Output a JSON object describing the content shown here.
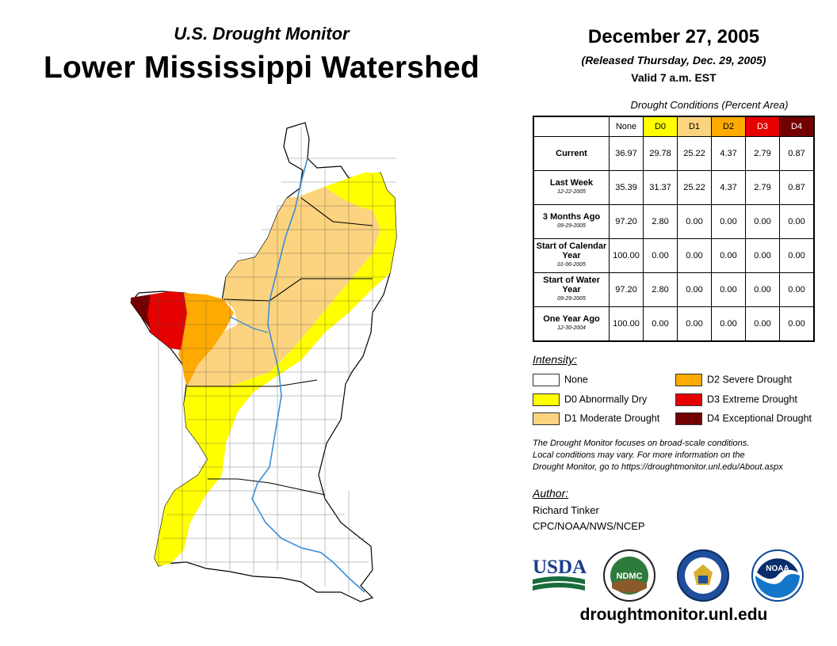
{
  "header": {
    "subtitle": "U.S. Drought Monitor",
    "title": "Lower Mississippi Watershed",
    "date": "December 27, 2005",
    "released": "(Released Thursday, Dec. 29, 2005)",
    "valid": "Valid 7 a.m. EST"
  },
  "table": {
    "caption": "Drought Conditions (Percent Area)",
    "columns": [
      "None",
      "D0",
      "D1",
      "D2",
      "D3",
      "D4"
    ],
    "rows": [
      {
        "label": "Current",
        "date": "",
        "values": [
          "36.97",
          "29.78",
          "25.22",
          "4.37",
          "2.79",
          "0.87"
        ]
      },
      {
        "label": "Last Week",
        "date": "12-22-2005",
        "values": [
          "35.39",
          "31.37",
          "25.22",
          "4.37",
          "2.79",
          "0.87"
        ]
      },
      {
        "label": "3 Months Ago",
        "date": "09-29-2005",
        "values": [
          "97.20",
          "2.80",
          "0.00",
          "0.00",
          "0.00",
          "0.00"
        ]
      },
      {
        "label": "Start of Calendar Year",
        "date": "01-06-2005",
        "values": [
          "100.00",
          "0.00",
          "0.00",
          "0.00",
          "0.00",
          "0.00"
        ]
      },
      {
        "label": "Start of Water Year",
        "date": "09-29-2005",
        "values": [
          "97.20",
          "2.80",
          "0.00",
          "0.00",
          "0.00",
          "0.00"
        ]
      },
      {
        "label": "One Year Ago",
        "date": "12-30-2004",
        "values": [
          "100.00",
          "0.00",
          "0.00",
          "0.00",
          "0.00",
          "0.00"
        ]
      }
    ]
  },
  "legend": {
    "heading": "Intensity:",
    "items": [
      {
        "label": "None",
        "color": "#ffffff"
      },
      {
        "label": "D0 Abnormally Dry",
        "color": "#ffff00"
      },
      {
        "label": "D1 Moderate Drought",
        "color": "#fcd37f"
      },
      {
        "label": "D2 Severe Drought",
        "color": "#ffaa00"
      },
      {
        "label": "D3 Extreme Drought",
        "color": "#e60000"
      },
      {
        "label": "D4 Exceptional Drought",
        "color": "#730000"
      }
    ]
  },
  "note": {
    "line1": "The Drought Monitor focuses on broad-scale conditions.",
    "line2": "Local conditions may vary. For more information on the",
    "line3": "Drought Monitor, go to https://droughtmonitor.unl.edu/About.aspx"
  },
  "author": {
    "heading": "Author:",
    "name": "Richard Tinker",
    "org": "CPC/NOAA/NWS/NCEP"
  },
  "logos": {
    "usda": "USDA",
    "ndmc": "NDMC",
    "noaa": "NOAA"
  },
  "website": "droughtmonitor.unl.edu",
  "colors": {
    "D0": "#ffff00",
    "D1": "#fcd37f",
    "D2": "#ffaa00",
    "D3": "#e60000",
    "D4": "#730000",
    "river": "#3a8fd8"
  }
}
